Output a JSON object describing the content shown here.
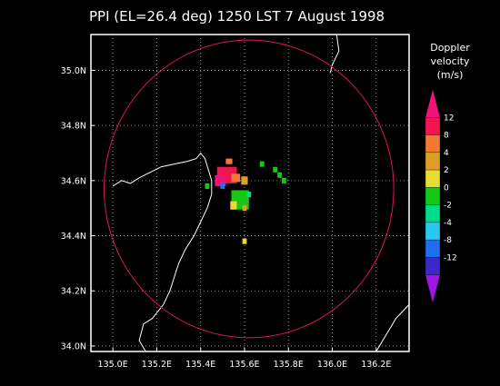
{
  "title": "PPI (EL=26.4 deg)  1250 LST 7 August 1998",
  "legend": {
    "title_lines": [
      "Doppler",
      "velocity",
      "(m/s)"
    ],
    "colors": [
      "#f0147a",
      "#f01450",
      "#f07a32",
      "#dca028",
      "#e6dc32",
      "#14c814",
      "#00dc8c",
      "#28c8f0",
      "#1e6ef0",
      "#3c28c8",
      "#a014e6"
    ],
    "ticks": [
      "12",
      "8",
      "4",
      "2",
      "0",
      "-2",
      "-4",
      "-8",
      "-12"
    ]
  },
  "map": {
    "x_ticks": [
      "135.0E",
      "135.2E",
      "135.4E",
      "135.6E",
      "135.8E",
      "136.0E",
      "136.2E"
    ],
    "y_ticks": [
      "35.0N",
      "34.8N",
      "34.6N",
      "34.4N",
      "34.2N",
      "34.0N"
    ],
    "lon_range": [
      134.9,
      136.35
    ],
    "lat_range": [
      33.98,
      35.13
    ],
    "grid": true,
    "range_ring": {
      "center_lon": 135.62,
      "center_lat": 34.57,
      "radius_deg_lon": 0.66,
      "radius_deg_lat": 0.54,
      "color": "#dc1464"
    }
  },
  "echoes": [
    {
      "lon": 135.52,
      "lat": 34.62,
      "w": 0.09,
      "h": 0.06,
      "color": "#f01450"
    },
    {
      "lon": 135.49,
      "lat": 34.6,
      "w": 0.05,
      "h": 0.04,
      "color": "#f0147a"
    },
    {
      "lon": 135.53,
      "lat": 34.67,
      "w": 0.03,
      "h": 0.02,
      "color": "#f07a32"
    },
    {
      "lon": 135.56,
      "lat": 34.61,
      "w": 0.04,
      "h": 0.03,
      "color": "#f07a32"
    },
    {
      "lon": 135.6,
      "lat": 34.6,
      "w": 0.03,
      "h": 0.03,
      "color": "#dca028"
    },
    {
      "lon": 135.5,
      "lat": 34.58,
      "w": 0.02,
      "h": 0.02,
      "color": "#1e6ef0"
    },
    {
      "lon": 135.58,
      "lat": 34.53,
      "w": 0.08,
      "h": 0.07,
      "color": "#14c814"
    },
    {
      "lon": 135.55,
      "lat": 34.51,
      "w": 0.03,
      "h": 0.03,
      "color": "#e6dc32"
    },
    {
      "lon": 135.6,
      "lat": 34.5,
      "w": 0.02,
      "h": 0.02,
      "color": "#dca028"
    },
    {
      "lon": 135.62,
      "lat": 34.55,
      "w": 0.02,
      "h": 0.02,
      "color": "#00dc8c"
    },
    {
      "lon": 135.43,
      "lat": 34.58,
      "w": 0.02,
      "h": 0.02,
      "color": "#14c814"
    },
    {
      "lon": 135.68,
      "lat": 34.66,
      "w": 0.02,
      "h": 0.02,
      "color": "#14c814"
    },
    {
      "lon": 135.74,
      "lat": 34.64,
      "w": 0.02,
      "h": 0.02,
      "color": "#14c814"
    },
    {
      "lon": 135.76,
      "lat": 34.62,
      "w": 0.02,
      "h": 0.02,
      "color": "#14c814"
    },
    {
      "lon": 135.78,
      "lat": 34.6,
      "w": 0.02,
      "h": 0.02,
      "color": "#14c814"
    },
    {
      "lon": 135.6,
      "lat": 34.38,
      "w": 0.02,
      "h": 0.02,
      "color": "#e6dc32"
    }
  ],
  "coastlines": [
    [
      [
        135.0,
        34.58
      ],
      [
        135.04,
        34.6
      ],
      [
        135.08,
        34.59
      ],
      [
        135.12,
        34.61
      ],
      [
        135.17,
        34.63
      ],
      [
        135.22,
        34.65
      ],
      [
        135.28,
        34.66
      ],
      [
        135.34,
        34.67
      ],
      [
        135.38,
        34.68
      ],
      [
        135.4,
        34.7
      ],
      [
        135.42,
        34.68
      ],
      [
        135.45,
        34.6
      ],
      [
        135.45,
        34.55
      ],
      [
        135.43,
        34.5
      ],
      [
        135.4,
        34.45
      ],
      [
        135.37,
        34.4
      ],
      [
        135.33,
        34.35
      ],
      [
        135.3,
        34.3
      ],
      [
        135.28,
        34.25
      ],
      [
        135.26,
        34.2
      ],
      [
        135.23,
        34.15
      ],
      [
        135.18,
        34.1
      ],
      [
        135.14,
        34.08
      ],
      [
        135.12,
        34.02
      ],
      [
        135.15,
        33.98
      ]
    ],
    [
      [
        136.02,
        35.13
      ],
      [
        136.03,
        35.07
      ],
      [
        136.0,
        35.02
      ],
      [
        135.99,
        34.99
      ]
    ],
    [
      [
        136.35,
        34.15
      ],
      [
        136.29,
        34.1
      ],
      [
        136.26,
        34.06
      ],
      [
        136.23,
        34.02
      ],
      [
        136.2,
        33.98
      ]
    ]
  ]
}
